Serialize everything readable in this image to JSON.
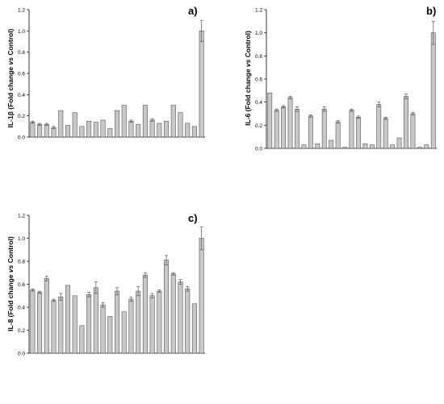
{
  "colors": {
    "bar_fill": "#c8c8c8",
    "bar_stroke": "#555555",
    "axis": "#000000",
    "error_bar": "#555555"
  },
  "chart_data": [
    {
      "type": "bar",
      "panel_label": "a)",
      "ylabel_parts": [
        "IL-1β (Fold change ",
        "vs",
        " Control)"
      ],
      "ylim": [
        0,
        1.2
      ],
      "yticks": [
        "0.0",
        "0.2",
        "0.4",
        "0.6",
        "0.8",
        "1.0",
        "1.2"
      ],
      "grid": false,
      "values": [
        0.14,
        0.12,
        0.12,
        0.09,
        0.25,
        0.11,
        0.23,
        0.1,
        0.15,
        0.14,
        0.16,
        0.08,
        0.25,
        0.3,
        0.15,
        0.12,
        0.3,
        0.16,
        0.13,
        0.15,
        0.3,
        0.23,
        0.13,
        0.1,
        1.0
      ],
      "errors": [
        0.01,
        0.01,
        0.01,
        0.01,
        0.0,
        0.0,
        0.0,
        0.0,
        0.0,
        0.0,
        0.0,
        0.0,
        0.0,
        0.0,
        0.01,
        0.0,
        0.0,
        0.01,
        0.0,
        0.0,
        0.0,
        0.0,
        0.0,
        0.0,
        0.1
      ]
    },
    {
      "type": "bar",
      "panel_label": "b)",
      "ylabel_parts": [
        "IL-6 (Fold change ",
        "vs",
        " Control)"
      ],
      "ylim": [
        0,
        1.2
      ],
      "yticks": [
        "0.0",
        "0.2",
        "0.4",
        "0.6",
        "0.8",
        "1.0",
        "1.2"
      ],
      "grid": false,
      "values": [
        0.48,
        0.33,
        0.36,
        0.44,
        0.34,
        0.03,
        0.28,
        0.04,
        0.34,
        0.07,
        0.23,
        0.01,
        0.33,
        0.27,
        0.04,
        0.03,
        0.38,
        0.26,
        0.03,
        0.09,
        0.45,
        0.3,
        0.01,
        0.03,
        1.0
      ],
      "errors": [
        0.0,
        0.01,
        0.01,
        0.01,
        0.02,
        0.0,
        0.01,
        0.0,
        0.02,
        0.0,
        0.01,
        0.0,
        0.01,
        0.01,
        0.0,
        0.0,
        0.02,
        0.01,
        0.0,
        0.0,
        0.02,
        0.01,
        0.0,
        0.0,
        0.1
      ]
    },
    {
      "type": "bar",
      "panel_label": "c)",
      "ylabel_parts": [
        "IL-8 (Fold change ",
        "vs",
        " Control)"
      ],
      "ylim": [
        0,
        1.2
      ],
      "yticks": [
        "0.0",
        "0.2",
        "0.4",
        "0.6",
        "0.8",
        "1.0",
        "1.2"
      ],
      "grid": false,
      "values": [
        0.55,
        0.53,
        0.65,
        0.46,
        0.49,
        0.59,
        0.5,
        0.24,
        0.51,
        0.57,
        0.42,
        0.32,
        0.54,
        0.36,
        0.47,
        0.54,
        0.68,
        0.5,
        0.54,
        0.81,
        0.69,
        0.62,
        0.56,
        0.43,
        1.0
      ],
      "errors": [
        0.01,
        0.01,
        0.02,
        0.01,
        0.03,
        0.0,
        0.0,
        0.0,
        0.02,
        0.05,
        0.02,
        0.0,
        0.03,
        0.0,
        0.02,
        0.04,
        0.02,
        0.02,
        0.01,
        0.04,
        0.01,
        0.02,
        0.02,
        0.0,
        0.1
      ]
    }
  ]
}
